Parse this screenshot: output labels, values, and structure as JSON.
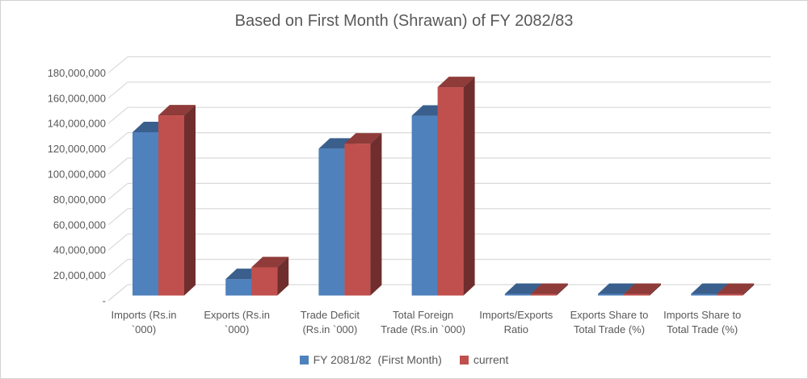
{
  "title": "Based on First Month (Shrawan) of FY 2082/83",
  "colors": {
    "text": "#595959",
    "gridline": "#d9d9d9",
    "series_blue": "#4F81BD",
    "series_red": "#C0504D",
    "frame_border": "#d2d2d2",
    "background": "#ffffff"
  },
  "chart_data": {
    "type": "bar",
    "style": "3d-clustered-column",
    "title": "Based on First Month (Shrawan) of FY 2082/83",
    "categories": [
      "Imports (Rs.in `000)",
      "Exports (Rs.in `000)",
      "Trade Deficit (Rs.in `000)",
      "Total  Foreign Trade (Rs.in `000)",
      "Imports/Exports Ratio",
      "Exports Share to Total Trade (%)",
      "Imports Share to Total Trade (%)"
    ],
    "category_label_lines": [
      [
        "Imports (Rs.in",
        "`000)"
      ],
      [
        "Exports (Rs.in",
        "`000)"
      ],
      [
        "Trade Deficit",
        "(Rs.in `000)"
      ],
      [
        "Total  Foreign",
        "Trade (Rs.in `000)"
      ],
      [
        "Imports/Exports",
        "Ratio"
      ],
      [
        "Exports Share to",
        "Total Trade (%)"
      ],
      [
        "Imports Share to",
        "Total Trade (%)"
      ]
    ],
    "series": [
      {
        "name": "FY 2081/82  (First Month)",
        "color": "#4F81BD",
        "values": [
          129000000,
          13000000,
          116000000,
          142000000,
          9.9,
          9.2,
          90.8
        ]
      },
      {
        "name": "current",
        "color": "#C0504D",
        "values": [
          142300000,
          22300000,
          120000000,
          164600000,
          6.4,
          13.5,
          86.5
        ]
      }
    ],
    "xlabel": "",
    "ylabel": "",
    "ylim": [
      0,
      180000000
    ],
    "ytick_step": 20000000,
    "ytick_labels": [
      "-",
      "20,000,000",
      "40,000,000",
      "60,000,000",
      "80,000,000",
      "100,000,000",
      "120,000,000",
      "140,000,000",
      "160,000,000",
      "180,000,000"
    ],
    "grid": true,
    "legend_position": "bottom"
  }
}
